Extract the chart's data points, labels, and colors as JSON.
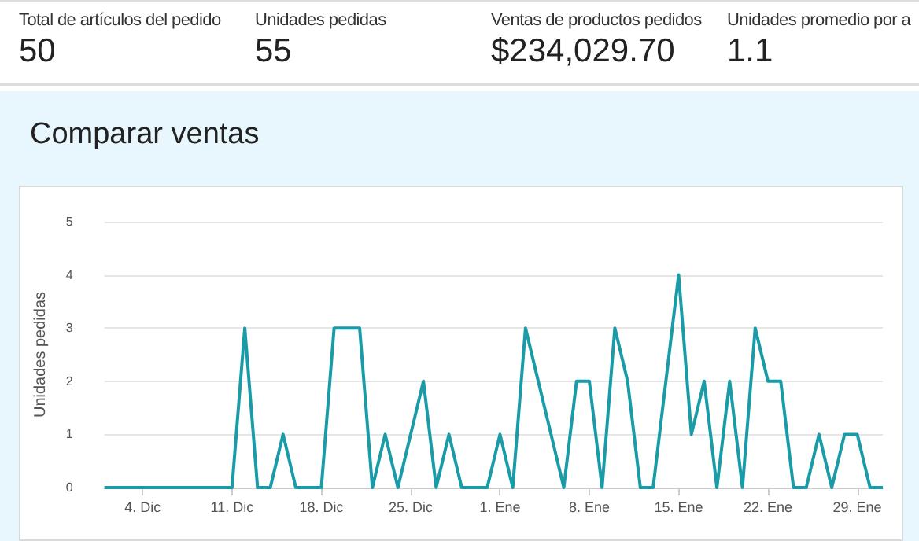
{
  "chart_data": [
    {
      "type": "other",
      "annotations": [
        "Total de artículos del pedido",
        "50",
        "Unidades pedidas",
        "55",
        "Ventas de productos pedidos",
        "$234,029.70",
        "Unidades promedio por a",
        "1.1"
      ]
    },
    {
      "type": "line",
      "title": "Comparar ventas",
      "ylabel": "Unidades pedidas",
      "categories": [
        null,
        null,
        null,
        "4. Dic",
        null,
        null,
        null,
        null,
        null,
        null,
        "11. Dic",
        null,
        null,
        null,
        null,
        null,
        null,
        "18. Dic",
        null,
        null,
        null,
        null,
        null,
        null,
        "25. Dic",
        null,
        null,
        null,
        null,
        null,
        null,
        "1. Ene",
        null,
        null,
        null,
        null,
        null,
        null,
        "8. Ene",
        null,
        null,
        null,
        null,
        null,
        null,
        "15. Ene",
        null,
        null,
        null,
        null,
        null,
        null,
        "22. Ene",
        null,
        null,
        null,
        null,
        null,
        null,
        "29. Ene",
        null,
        null
      ],
      "series": [
        {
          "color": "#1a9ba8",
          "values": [
            0,
            0,
            0,
            0,
            0,
            0,
            0,
            0,
            0,
            0,
            0,
            3,
            0,
            0,
            1,
            0,
            0,
            0,
            3,
            3,
            3,
            0,
            1,
            0,
            1,
            2,
            0,
            1,
            0,
            0,
            0,
            1,
            0,
            3,
            2,
            1,
            0,
            2,
            2,
            0,
            3,
            2,
            0,
            0,
            2,
            4,
            1,
            2,
            0,
            2,
            0,
            3,
            2,
            2,
            0,
            0,
            1,
            0,
            1,
            1,
            0,
            0
          ]
        }
      ],
      "ylim": [
        0,
        5
      ],
      "yticks": [
        0,
        1,
        2,
        3,
        4,
        5
      ],
      "grid": "y",
      "marker": "none",
      "line_style": "solid"
    }
  ]
}
